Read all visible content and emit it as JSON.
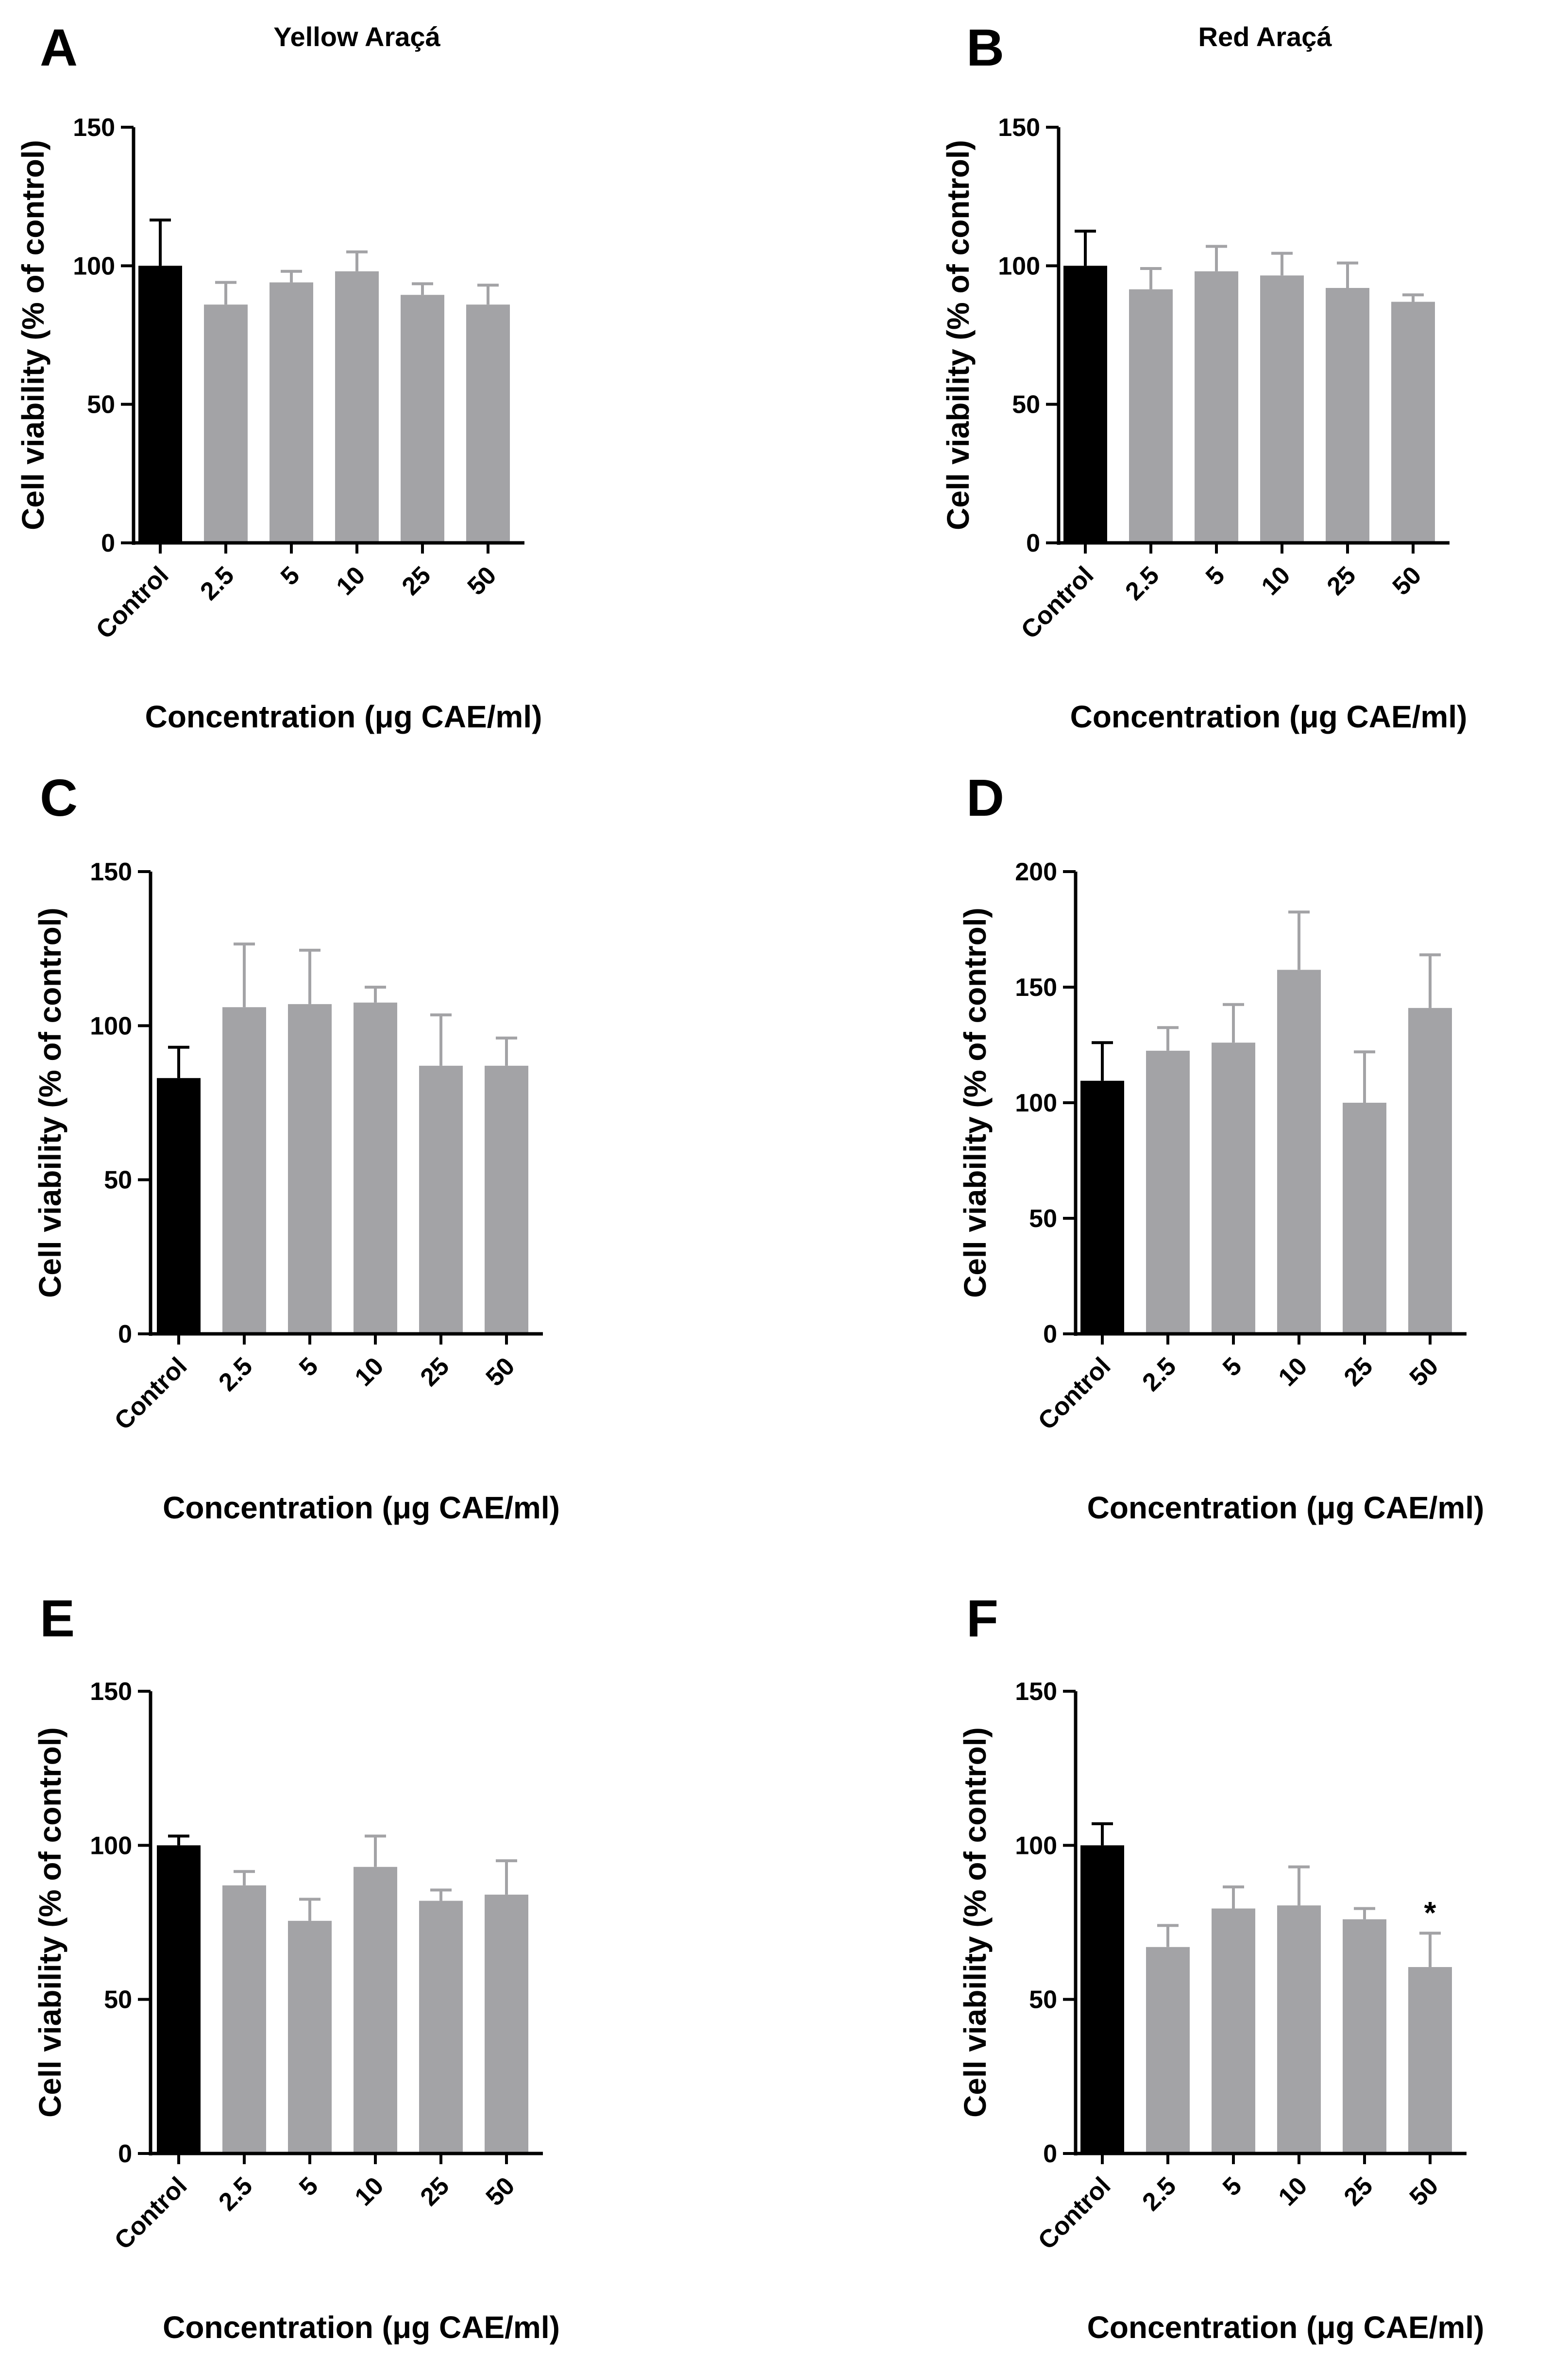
{
  "figure": {
    "column_titles": [
      "Yellow Araçá",
      "Red Araçá"
    ]
  },
  "colors": {
    "control": "#000000",
    "treatment": "#a3a3a6",
    "axis": "#000000"
  },
  "chart_data": [
    {
      "type": "bar",
      "panel": "A",
      "title": "Yellow Araçá",
      "categories": [
        "Control",
        "2.5",
        "5",
        "10",
        "25",
        "50"
      ],
      "values": [
        100,
        86,
        94,
        98,
        89.5,
        86
      ],
      "errors": [
        16.5,
        8,
        4,
        7,
        4,
        7
      ],
      "annotations": [
        "",
        "",
        "",
        "",
        "",
        ""
      ],
      "ylim": [
        0,
        150
      ],
      "yticks": [
        "0",
        "50",
        "100",
        "150"
      ],
      "ylabel": "Cell viability (% of control)",
      "xlabel": "Concentration (μg CAE/ml)"
    },
    {
      "type": "bar",
      "panel": "B",
      "title": "Red Araçá",
      "categories": [
        "Control",
        "2.5",
        "5",
        "10",
        "25",
        "50"
      ],
      "values": [
        100,
        91.5,
        98,
        96.5,
        92,
        87
      ],
      "errors": [
        12.5,
        7.5,
        9,
        8,
        9,
        2.5
      ],
      "annotations": [
        "",
        "",
        "",
        "",
        "",
        ""
      ],
      "ylim": [
        0,
        150
      ],
      "yticks": [
        "0",
        "50",
        "100",
        "150"
      ],
      "ylabel": "Cell viability (% of control)",
      "xlabel": "Concentration (μg CAE/ml)"
    },
    {
      "type": "bar",
      "panel": "C",
      "title": "",
      "categories": [
        "Control",
        "2.5",
        "5",
        "10",
        "25",
        "50"
      ],
      "values": [
        83,
        106,
        107,
        107.5,
        87,
        87
      ],
      "errors": [
        10,
        20.5,
        17.5,
        5,
        16.5,
        9
      ],
      "annotations": [
        "",
        "",
        "",
        "",
        "",
        ""
      ],
      "ylim": [
        0,
        150
      ],
      "yticks": [
        "0",
        "50",
        "100",
        "150"
      ],
      "ylabel": "Cell viability (% of control)",
      "xlabel": "Concentration (μg CAE/ml)"
    },
    {
      "type": "bar",
      "panel": "D",
      "title": "",
      "categories": [
        "Control",
        "2.5",
        "5",
        "10",
        "25",
        "50"
      ],
      "values": [
        109.5,
        122.5,
        126,
        157.5,
        100,
        141
      ],
      "errors": [
        16.5,
        10,
        16.5,
        25,
        22,
        23
      ],
      "annotations": [
        "",
        "",
        "",
        "",
        "",
        ""
      ],
      "ylim": [
        0,
        200
      ],
      "yticks": [
        "0",
        "50",
        "100",
        "150",
        "200"
      ],
      "ylabel": "Cell viability (% of control)",
      "xlabel": "Concentration (μg CAE/ml)"
    },
    {
      "type": "bar",
      "panel": "E",
      "title": "",
      "categories": [
        "Control",
        "2.5",
        "5",
        "10",
        "25",
        "50"
      ],
      "values": [
        100,
        87,
        75.5,
        93,
        82,
        84
      ],
      "errors": [
        3,
        4.5,
        7,
        10,
        3.5,
        11
      ],
      "annotations": [
        "",
        "",
        "",
        "",
        "",
        ""
      ],
      "ylim": [
        0,
        150
      ],
      "yticks": [
        "0",
        "50",
        "100",
        "150"
      ],
      "ylabel": "Cell viability (% of control)",
      "xlabel": "Concentration (μg CAE/ml)"
    },
    {
      "type": "bar",
      "panel": "F",
      "title": "",
      "categories": [
        "Control",
        "2.5",
        "5",
        "10",
        "25",
        "50"
      ],
      "values": [
        100,
        67,
        79.5,
        80.5,
        76,
        60.5
      ],
      "errors": [
        7,
        7,
        7,
        12.5,
        3.5,
        11
      ],
      "annotations": [
        "",
        "",
        "",
        "",
        "",
        "*"
      ],
      "ylim": [
        0,
        150
      ],
      "yticks": [
        "0",
        "50",
        "100",
        "150"
      ],
      "ylabel": "Cell viability (% of control)",
      "xlabel": "Concentration (μg CAE/ml)"
    }
  ]
}
